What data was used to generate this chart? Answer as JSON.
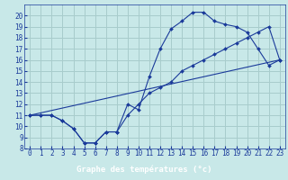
{
  "bg_color": "#c8e8e8",
  "grid_color": "#a8cccc",
  "line_color": "#1a3a9a",
  "xlabel": "Graphe des températures (°c)",
  "xlabel_bg": "#1a3a9a",
  "xlabel_fg": "#ffffff",
  "xlim": [
    -0.5,
    23.5
  ],
  "ylim": [
    8,
    21
  ],
  "xticks": [
    0,
    1,
    2,
    3,
    4,
    5,
    6,
    7,
    8,
    9,
    10,
    11,
    12,
    13,
    14,
    15,
    16,
    17,
    18,
    19,
    20,
    21,
    22,
    23
  ],
  "yticks": [
    8,
    9,
    10,
    11,
    12,
    13,
    14,
    15,
    16,
    17,
    18,
    19,
    20
  ],
  "curve1_x": [
    0,
    1,
    2,
    3,
    4,
    5,
    6,
    7,
    8,
    9,
    10,
    11,
    12,
    13,
    14,
    15,
    16,
    17,
    18,
    19,
    20,
    21,
    22,
    23
  ],
  "curve1_y": [
    11.0,
    11.0,
    11.0,
    10.5,
    9.8,
    8.5,
    8.5,
    9.5,
    9.5,
    12.0,
    11.5,
    14.5,
    17.0,
    18.8,
    19.5,
    20.3,
    20.3,
    19.5,
    19.2,
    19.0,
    18.5,
    17.0,
    15.5,
    16.0
  ],
  "curve2_x": [
    0,
    1,
    2,
    3,
    4,
    5,
    6,
    7,
    8,
    9,
    10,
    11,
    12,
    13,
    14,
    15,
    16,
    17,
    18,
    19,
    20,
    21,
    22,
    23
  ],
  "curve2_y": [
    11.0,
    11.0,
    11.0,
    10.5,
    9.8,
    8.5,
    8.5,
    9.5,
    9.5,
    11.0,
    12.0,
    13.0,
    13.5,
    14.0,
    15.0,
    15.5,
    16.0,
    16.5,
    17.0,
    17.5,
    18.0,
    18.5,
    19.0,
    16.0
  ],
  "curve3_x": [
    0,
    23
  ],
  "curve3_y": [
    11.0,
    16.0
  ],
  "tick_fontsize": 5.5,
  "xlabel_fontsize": 6.5
}
